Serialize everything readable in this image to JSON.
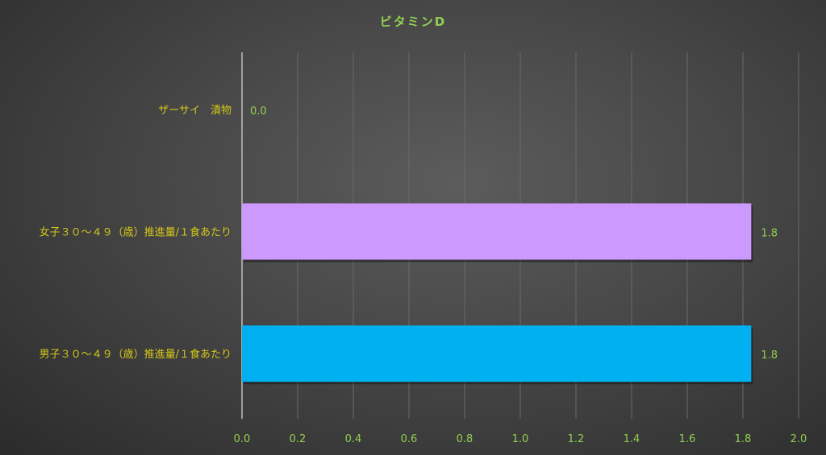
{
  "chart_data": {
    "type": "bar",
    "orientation": "horizontal",
    "title": "ビタミンD",
    "categories": [
      "ザーサイ　漬物",
      "女子３０～４９（歳）推進量/１食あたり",
      "男子３０～４９（歳）推進量/１食あたり"
    ],
    "values": [
      0.0,
      1.83,
      1.83
    ],
    "data_labels": [
      "0.0",
      "1.8",
      "1.8"
    ],
    "bar_colors": [
      "#cc99ff",
      "#cc99ff",
      "#00b0f0"
    ],
    "xlim": [
      0,
      2.0
    ],
    "xticks": [
      "0.0",
      "0.2",
      "0.4",
      "0.6",
      "0.8",
      "1.0",
      "1.2",
      "1.4",
      "1.6",
      "1.8",
      "2.0"
    ],
    "grid": true,
    "legend": "none",
    "xlabel": "",
    "ylabel": ""
  }
}
